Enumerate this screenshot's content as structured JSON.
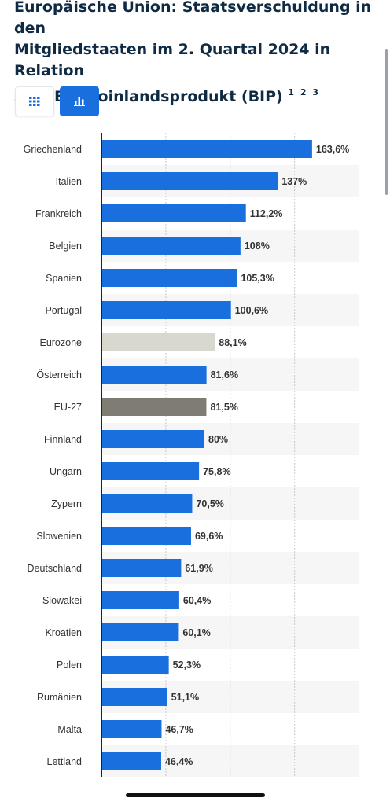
{
  "header": {
    "title_line1": "Europäische Union: Staatsverschuldung in den",
    "title_line2": "Mitgliedstaaten im 2. Quartal 2024 in Relation",
    "title_line3": "zum Bruttoinlandsprodukt (BIP)",
    "footnotes": "1 2 3"
  },
  "view_toggle": {
    "table_icon": "grid-icon",
    "chart_icon": "bar-chart-icon",
    "active": "chart",
    "active_color": "#1a6fdf"
  },
  "chart_data": {
    "type": "bar",
    "orientation": "horizontal",
    "categories": [
      "Griechenland",
      "Italien",
      "Frankreich",
      "Belgien",
      "Spanien",
      "Portugal",
      "Eurozone",
      "Österreich",
      "EU-27",
      "Finnland",
      "Ungarn",
      "Zypern",
      "Slowenien",
      "Deutschland",
      "Slowakei",
      "Kroatien",
      "Polen",
      "Rumänien",
      "Malta",
      "Lettland"
    ],
    "values": [
      163.6,
      137,
      112.2,
      108,
      105.3,
      100.6,
      88.1,
      81.6,
      81.5,
      80,
      75.8,
      70.5,
      69.6,
      61.9,
      60.4,
      60.1,
      52.3,
      51.1,
      46.7,
      46.4
    ],
    "value_labels": [
      "163,6%",
      "137%",
      "112,2%",
      "108%",
      "105,3%",
      "100,6%",
      "88,1%",
      "81,6%",
      "81,5%",
      "80%",
      "75,8%",
      "70,5%",
      "69,6%",
      "61,9%",
      "60,4%",
      "60,1%",
      "52,3%",
      "51,1%",
      "46,7%",
      "46,4%"
    ],
    "colors": [
      "#1a6fdf",
      "#1a6fdf",
      "#1a6fdf",
      "#1a6fdf",
      "#1a6fdf",
      "#1a6fdf",
      "#d9d8cf",
      "#1a6fdf",
      "#7e7c73",
      "#1a6fdf",
      "#1a6fdf",
      "#1a6fdf",
      "#1a6fdf",
      "#1a6fdf",
      "#1a6fdf",
      "#1a6fdf",
      "#1a6fdf",
      "#1a6fdf",
      "#1a6fdf",
      "#1a6fdf"
    ],
    "xlim": [
      0,
      200
    ],
    "grid": true,
    "xlabel": "",
    "ylabel": ""
  }
}
